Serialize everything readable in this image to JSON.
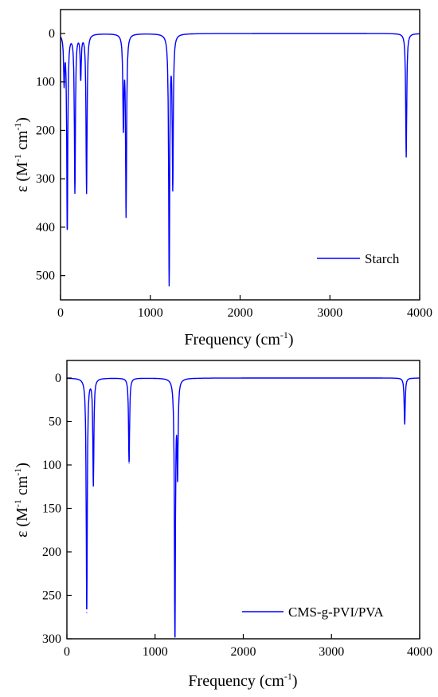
{
  "chart_data": [
    {
      "type": "line",
      "xlabel": "Frequency (cm",
      "xlabel_sup": "-1",
      "xlabel_tail": ")",
      "ylabel_prefix": "ε (M",
      "ylabel_sup1": "-1",
      "ylabel_mid": " cm",
      "ylabel_sup2": "-1",
      "ylabel_tail": ")",
      "xlim": [
        0,
        4000
      ],
      "ylim": [
        0,
        550
      ],
      "y_inverted": true,
      "x_ticks": [
        0,
        1000,
        2000,
        3000,
        4000
      ],
      "y_ticks": [
        0,
        100,
        200,
        300,
        400,
        500
      ],
      "grid": false,
      "legend_position": "bottom-right",
      "line_color": "#0000ff",
      "series": [
        {
          "name": "Starch",
          "peaks": [
            {
              "x": 40,
              "y": 95
            },
            {
              "x": 75,
              "y": 405
            },
            {
              "x": 160,
              "y": 325
            },
            {
              "x": 225,
              "y": 90
            },
            {
              "x": 290,
              "y": 328
            },
            {
              "x": 700,
              "y": 185
            },
            {
              "x": 730,
              "y": 370
            },
            {
              "x": 1210,
              "y": 512
            },
            {
              "x": 1250,
              "y": 310
            },
            {
              "x": 3850,
              "y": 255
            }
          ]
        }
      ]
    },
    {
      "type": "line",
      "xlabel": "Frequency (cm",
      "xlabel_sup": "-1",
      "xlabel_tail": ")",
      "ylabel_prefix": "ε (M",
      "ylabel_sup1": "-1",
      "ylabel_mid": " cm",
      "ylabel_sup2": "-1",
      "ylabel_tail": ")",
      "xlim": [
        0,
        4000
      ],
      "ylim": [
        0,
        300
      ],
      "y_inverted": true,
      "x_ticks": [
        0,
        1000,
        2000,
        3000,
        4000
      ],
      "y_ticks": [
        0,
        50,
        100,
        150,
        200,
        250,
        300
      ],
      "grid": false,
      "legend_position": "bottom-right",
      "line_color": "#0000ff",
      "series": [
        {
          "name": "CMS-g-PVI/PVA",
          "peaks": [
            {
              "x": 225,
              "y": 270
            },
            {
              "x": 300,
              "y": 122
            },
            {
              "x": 705,
              "y": 98
            },
            {
              "x": 1225,
              "y": 298
            },
            {
              "x": 1255,
              "y": 105
            },
            {
              "x": 3830,
              "y": 53
            }
          ]
        }
      ]
    }
  ]
}
